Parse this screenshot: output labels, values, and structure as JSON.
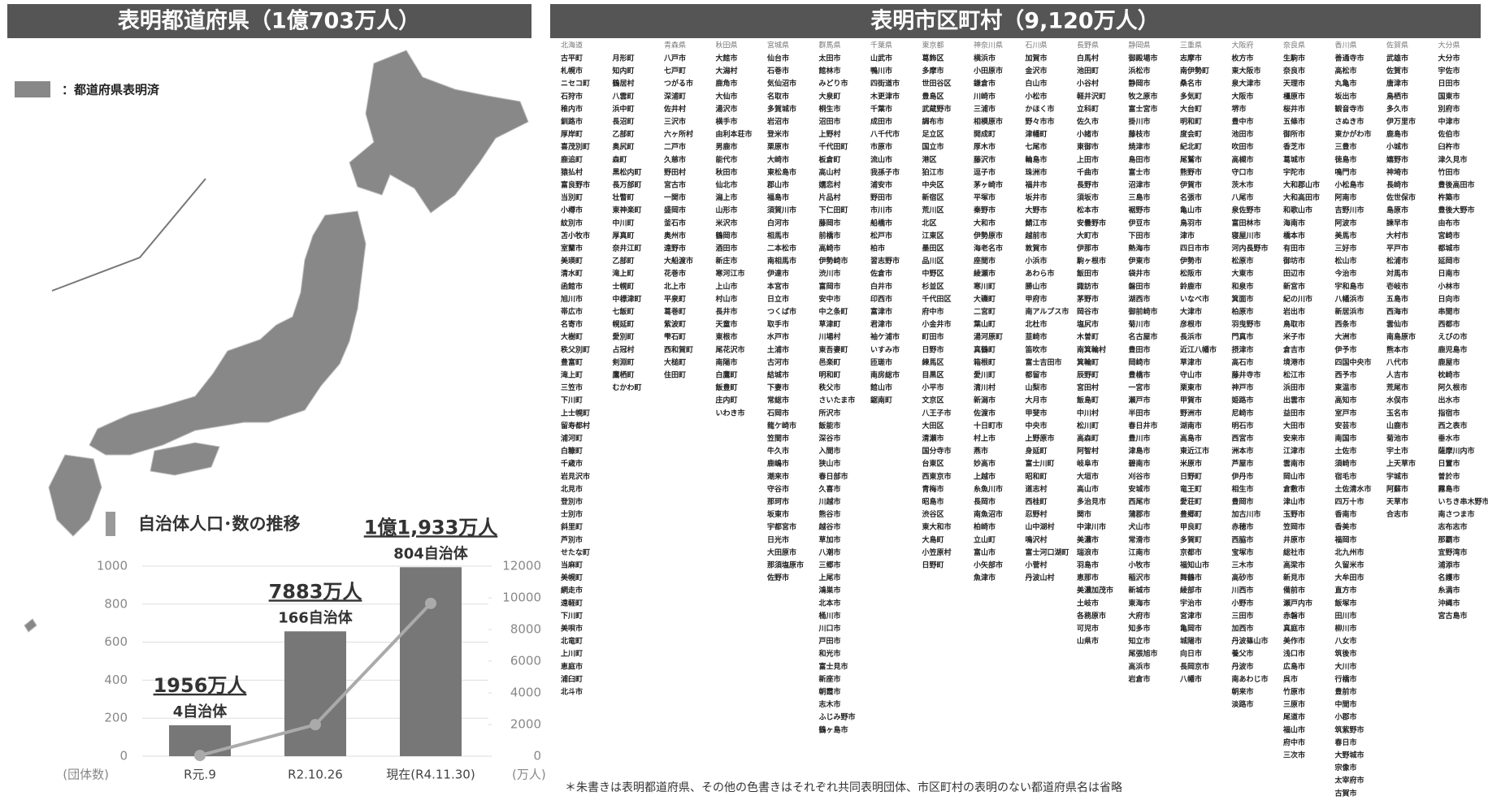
{
  "prefectures": {
    "title": "表明都道府県（1億703万人）",
    "legend": "：都道府県表明済"
  },
  "chart_data": {
    "type": "bar-line",
    "title": "自治体人口･数の推移",
    "categories": [
      "R元.9",
      "R2.10.26",
      "現在(R4.11.30)"
    ],
    "series": [
      {
        "type": "bar",
        "axis": "y2",
        "color": "#777777",
        "values": [
          1956,
          7883,
          11933
        ],
        "value_labels": [
          "1956万人",
          "7883万人",
          "1億1,933万人"
        ]
      },
      {
        "type": "line",
        "axis": "y",
        "color": "#aaaaaa",
        "values": [
          4,
          166,
          804
        ],
        "value_labels": [
          "4自治体",
          "166自治体",
          "804自治体"
        ]
      }
    ],
    "ylim": [
      0,
      1000
    ],
    "yticks": [
      0,
      200,
      400,
      600,
      800,
      1000
    ],
    "ylabel": "(団体数)",
    "y2lim": [
      0,
      12000
    ],
    "y2ticks": [
      0,
      2000,
      4000,
      6000,
      8000,
      10000,
      12000
    ],
    "y2label": "(万人)",
    "grid": true
  },
  "municipalities": {
    "title": "表明市区町村（9,120万人）",
    "columns": [
      {
        "header": "北海道",
        "names": [
          "古平町",
          "札幌市",
          "ニセコ町",
          "石狩市",
          "稚内市",
          "釧路市",
          "厚岸町",
          "喜茂別町",
          "鹿追町",
          "猿払村",
          "富良野市",
          "当別町",
          "小樽市",
          "紋別市",
          "苫小牧市",
          "室蘭市",
          "美瑛町",
          "清水町",
          "函館市",
          "旭川市",
          "帯広市",
          "名寄市",
          "大樹町",
          "秩父別町",
          "豊富町",
          "滝上町",
          "三笠市",
          "下川町",
          "上士幌町",
          "留寿都村",
          "浦河町",
          "白糠町",
          "千歳市",
          "岩見沢市",
          "北見市",
          "登別市",
          "士別市",
          "斜里町",
          "芦別市",
          "せたな町",
          "当麻町",
          "美幌町",
          "網走市",
          "遠軽町",
          "下川町",
          "美唄市",
          "北竜町",
          "上川町",
          "恵庭市",
          "浦臼町",
          "北斗市"
        ]
      },
      {
        "names": [
          "月形町",
          "知内町",
          "鶴居村",
          "八雲町",
          "浜中町",
          "長沼町",
          "乙部町",
          "奥尻町",
          "森町",
          "黒松内町",
          "長万部町",
          "壮瞥町",
          "東神楽町",
          "中川町",
          "厚真町",
          "奈井江町",
          "乙部町",
          "滝上町",
          "士幌町",
          "中標津町",
          "七飯町",
          "幌延町",
          "愛別町",
          "占冠村",
          "剣淵町",
          "鷹栖町",
          "むかわ町"
        ]
      },
      {
        "header": "青森県",
        "names": [
          "八戸市",
          "七戸町",
          "つがる市",
          "深浦町",
          "佐井村",
          "三沢市",
          "六ヶ所村",
          "二戸市",
          "久慈市",
          "野田村",
          "宮古市",
          "一関市",
          "盛岡市",
          "釜石市",
          "奥州市",
          "遠野市",
          "大船渡市",
          "花巻市",
          "北上市",
          "平泉町",
          "葛巻町",
          "紫波町",
          "雫石町",
          "西和賀町",
          "大槌町",
          "住田町"
        ]
      },
      {
        "header": "秋田県",
        "names": [
          "大館市",
          "大潟村",
          "鹿角市",
          "大仙市",
          "湯沢市",
          "横手市",
          "由利本荘市",
          "男鹿市",
          "能代市",
          "秋田市",
          "仙北市",
          "潟上市",
          "山形市",
          "米沢市",
          "鶴岡市",
          "酒田市",
          "新庄市",
          "寒河江市",
          "上山市",
          "村山市",
          "長井市",
          "天童市",
          "東根市",
          "尾花沢市",
          "南陽市",
          "白鷹町",
          "飯豊町",
          "庄内町",
          "いわき市"
        ]
      },
      {
        "header": "宮城県",
        "names": [
          "仙台市",
          "石巻市",
          "気仙沼市",
          "名取市",
          "多賀城市",
          "岩沼市",
          "登米市",
          "栗原市",
          "大崎市",
          "東松島市",
          "郡山市",
          "福島市",
          "須賀川市",
          "白河市",
          "相馬市",
          "二本松市",
          "南相馬市",
          "伊達市",
          "本宮市",
          "日立市",
          "つくば市",
          "取手市",
          "水戸市",
          "土浦市",
          "古河市",
          "結城市",
          "下妻市",
          "常総市",
          "石岡市",
          "龍ケ崎市",
          "笠間市",
          "牛久市",
          "鹿嶋市",
          "潮来市",
          "守谷市",
          "那珂市",
          "坂東市",
          "宇都宮市",
          "日光市",
          "大田原市",
          "那須塩原市",
          "佐野市"
        ]
      },
      {
        "header": "群馬県",
        "names": [
          "太田市",
          "館林市",
          "みどり市",
          "大泉町",
          "桐生市",
          "沼田市",
          "上野村",
          "千代田町",
          "板倉町",
          "高山村",
          "嬬恋村",
          "片品村",
          "下仁田町",
          "藤岡市",
          "前橋市",
          "高崎市",
          "伊勢崎市",
          "渋川市",
          "富岡市",
          "安中市",
          "中之条町",
          "草津町",
          "川場村",
          "東吾妻町",
          "邑楽町",
          "明和町",
          "秩父市",
          "さいたま市",
          "所沢市",
          "飯能市",
          "深谷市",
          "入間市",
          "狭山市",
          "春日部市",
          "久喜市",
          "川越市",
          "熊谷市",
          "越谷市",
          "草加市",
          "八潮市",
          "三郷市",
          "上尾市",
          "鴻巣市",
          "北本市",
          "桶川市",
          "川口市",
          "戸田市",
          "和光市",
          "富士見市",
          "新座市",
          "朝霞市",
          "志木市",
          "ふじみ野市",
          "鶴ヶ島市"
        ]
      },
      {
        "header": "千葉県",
        "names": [
          "山武市",
          "鴨川市",
          "四街道市",
          "木更津市",
          "千葉市",
          "成田市",
          "八千代市",
          "市原市",
          "流山市",
          "我孫子市",
          "浦安市",
          "野田市",
          "市川市",
          "船橋市",
          "松戸市",
          "柏市",
          "習志野市",
          "佐倉市",
          "白井市",
          "印西市",
          "富津市",
          "君津市",
          "袖ケ浦市",
          "いすみ市",
          "匝瑳市",
          "南房総市",
          "館山市",
          "鋸南町"
        ]
      },
      {
        "header": "東京都",
        "names": [
          "葛飾区",
          "多摩市",
          "世田谷区",
          "豊島区",
          "武蔵野市",
          "調布市",
          "足立区",
          "国立市",
          "港区",
          "狛江市",
          "中央区",
          "新宿区",
          "荒川区",
          "北区",
          "江東区",
          "墨田区",
          "品川区",
          "中野区",
          "杉並区",
          "千代田区",
          "府中市",
          "小金井市",
          "町田市",
          "日野市",
          "練馬区",
          "目黒区",
          "小平市",
          "文京区",
          "八王子市",
          "大田区",
          "清瀬市",
          "国分寺市",
          "台東区",
          "西東京市",
          "青梅市",
          "昭島市",
          "渋谷区",
          "東大和市",
          "大島町",
          "小笠原村",
          "日野町"
        ]
      },
      {
        "header": "神奈川県",
        "names": [
          "横浜市",
          "小田原市",
          "鎌倉市",
          "川崎市",
          "三浦市",
          "相模原市",
          "開成町",
          "厚木市",
          "藤沢市",
          "逗子市",
          "茅ヶ崎市",
          "平塚市",
          "秦野市",
          "大和市",
          "伊勢原市",
          "海老名市",
          "座間市",
          "綾瀬市",
          "寒川町",
          "大磯町",
          "二宮町",
          "葉山町",
          "湯河原町",
          "真鶴町",
          "箱根町",
          "愛川町",
          "清川村",
          "新潟市",
          "佐渡市",
          "十日町市",
          "村上市",
          "燕市",
          "妙高市",
          "上越市",
          "糸魚川市",
          "長岡市",
          "南魚沼市",
          "柏崎市",
          "立山町",
          "富山市",
          "小矢部市",
          "魚津市"
        ]
      },
      {
        "header": "石川県",
        "names": [
          "加賀市",
          "金沢市",
          "白山市",
          "小松市",
          "かほく市",
          "野々市市",
          "津幡町",
          "七尾市",
          "輪島市",
          "珠洲市",
          "福井市",
          "坂井市",
          "大野市",
          "鯖江市",
          "越前市",
          "敦賀市",
          "小浜市",
          "あわら市",
          "勝山市",
          "甲府市",
          "南アルプス市",
          "北杜市",
          "韮崎市",
          "笛吹市",
          "富士吉田市",
          "都留市",
          "山梨市",
          "大月市",
          "甲斐市",
          "中央市",
          "上野原市",
          "身延町",
          "富士川町",
          "昭和町",
          "道志村",
          "西桂町",
          "忍野村",
          "山中湖村",
          "鳴沢村",
          "富士河口湖町",
          "小菅村",
          "丹波山村"
        ]
      },
      {
        "header": "長野県",
        "names": [
          "白馬村",
          "池田町",
          "小谷村",
          "軽井沢町",
          "立科町",
          "佐久市",
          "小諸市",
          "東御市",
          "上田市",
          "千曲市",
          "長野市",
          "須坂市",
          "松本市",
          "安曇野市",
          "大町市",
          "伊那市",
          "駒ヶ根市",
          "飯田市",
          "諏訪市",
          "茅野市",
          "岡谷市",
          "塩尻市",
          "木曽町",
          "南箕輪村",
          "箕輪町",
          "辰野町",
          "宮田村",
          "飯島町",
          "中川村",
          "松川町",
          "高森町",
          "阿智村",
          "岐阜市",
          "大垣市",
          "高山市",
          "多治見市",
          "関市",
          "中津川市",
          "美濃市",
          "瑞浪市",
          "羽島市",
          "恵那市",
          "美濃加茂市",
          "土岐市",
          "各務原市",
          "可児市",
          "山県市"
        ]
      },
      {
        "header": "静岡県",
        "names": [
          "御殿場市",
          "浜松市",
          "静岡市",
          "牧之原市",
          "富士宮市",
          "掛川市",
          "藤枝市",
          "焼津市",
          "島田市",
          "富士市",
          "沼津市",
          "三島市",
          "裾野市",
          "伊豆市",
          "下田市",
          "熱海市",
          "伊東市",
          "袋井市",
          "磐田市",
          "湖西市",
          "御前崎市",
          "菊川市",
          "名古屋市",
          "豊田市",
          "岡崎市",
          "豊橋市",
          "一宮市",
          "瀬戸市",
          "半田市",
          "春日井市",
          "豊川市",
          "津島市",
          "碧南市",
          "刈谷市",
          "安城市",
          "西尾市",
          "蒲郡市",
          "犬山市",
          "常滑市",
          "江南市",
          "小牧市",
          "稲沢市",
          "新城市",
          "東海市",
          "大府市",
          "知多市",
          "知立市",
          "尾張旭市",
          "高浜市",
          "岩倉市"
        ]
      },
      {
        "header": "三重県",
        "names": [
          "志摩市",
          "南伊勢町",
          "桑名市",
          "多気町",
          "大台町",
          "明和町",
          "度会町",
          "紀北町",
          "尾鷲市",
          "熊野市",
          "伊賀市",
          "名張市",
          "亀山市",
          "鳥羽市",
          "津市",
          "四日市市",
          "伊勢市",
          "松阪市",
          "鈴鹿市",
          "いなべ市",
          "大津市",
          "彦根市",
          "長浜市",
          "近江八幡市",
          "草津市",
          "守山市",
          "栗東市",
          "甲賀市",
          "野洲市",
          "湖南市",
          "高島市",
          "東近江市",
          "米原市",
          "日野町",
          "竜王町",
          "愛荘町",
          "豊郷町",
          "甲良町",
          "多賀町",
          "京都市",
          "福知山市",
          "舞鶴市",
          "綾部市",
          "宇治市",
          "宮津市",
          "亀岡市",
          "城陽市",
          "向日市",
          "長岡京市",
          "八幡市"
        ]
      },
      {
        "header": "大阪府",
        "names": [
          "枚方市",
          "東大阪市",
          "泉大津市",
          "大阪市",
          "堺市",
          "豊中市",
          "池田市",
          "吹田市",
          "高槻市",
          "守口市",
          "茨木市",
          "八尾市",
          "泉佐野市",
          "富田林市",
          "寝屋川市",
          "河内長野市",
          "松原市",
          "大東市",
          "和泉市",
          "箕面市",
          "柏原市",
          "羽曳野市",
          "門真市",
          "摂津市",
          "高石市",
          "藤井寺市",
          "神戸市",
          "姫路市",
          "尼崎市",
          "明石市",
          "西宮市",
          "洲本市",
          "芦屋市",
          "伊丹市",
          "相生市",
          "豊岡市",
          "加古川市",
          "赤穂市",
          "西脇市",
          "宝塚市",
          "三木市",
          "高砂市",
          "川西市",
          "小野市",
          "三田市",
          "加西市",
          "丹波篠山市",
          "養父市",
          "丹波市",
          "南あわじ市",
          "朝来市",
          "淡路市"
        ]
      },
      {
        "header": "奈良県",
        "names": [
          "生駒市",
          "奈良市",
          "天理市",
          "橿原市",
          "桜井市",
          "五條市",
          "御所市",
          "香芝市",
          "葛城市",
          "宇陀市",
          "大和郡山市",
          "大和高田市",
          "和歌山市",
          "海南市",
          "橋本市",
          "有田市",
          "御坊市",
          "田辺市",
          "新宮市",
          "紀の川市",
          "岩出市",
          "鳥取市",
          "米子市",
          "倉吉市",
          "境港市",
          "松江市",
          "浜田市",
          "出雲市",
          "益田市",
          "大田市",
          "安来市",
          "江津市",
          "雲南市",
          "岡山市",
          "倉敷市",
          "津山市",
          "玉野市",
          "笠岡市",
          "井原市",
          "総社市",
          "高梁市",
          "新見市",
          "備前市",
          "瀬戸内市",
          "赤磐市",
          "真庭市",
          "美作市",
          "浅口市",
          "広島市",
          "呉市",
          "竹原市",
          "三原市",
          "尾道市",
          "福山市",
          "府中市",
          "三次市"
        ]
      },
      {
        "header": "香川県",
        "names": [
          "善通寺市",
          "高松市",
          "丸亀市",
          "坂出市",
          "観音寺市",
          "さぬき市",
          "東かがわ市",
          "三豊市",
          "徳島市",
          "鳴門市",
          "小松島市",
          "阿南市",
          "吉野川市",
          "阿波市",
          "美馬市",
          "三好市",
          "松山市",
          "今治市",
          "宇和島市",
          "八幡浜市",
          "新居浜市",
          "西条市",
          "大洲市",
          "伊予市",
          "四国中央市",
          "西予市",
          "東温市",
          "高知市",
          "室戸市",
          "安芸市",
          "南国市",
          "土佐市",
          "須崎市",
          "宿毛市",
          "土佐清水市",
          "四万十市",
          "香南市",
          "香美市",
          "福岡市",
          "北九州市",
          "久留米市",
          "大牟田市",
          "直方市",
          "飯塚市",
          "田川市",
          "柳川市",
          "八女市",
          "筑後市",
          "大川市",
          "行橋市",
          "豊前市",
          "中間市",
          "小郡市",
          "筑紫野市",
          "春日市",
          "大野城市",
          "宗像市",
          "太宰府市",
          "古賀市"
        ]
      },
      {
        "header": "佐賀県",
        "names": [
          "武雄市",
          "佐賀市",
          "唐津市",
          "鳥栖市",
          "多久市",
          "伊万里市",
          "鹿島市",
          "小城市",
          "嬉野市",
          "神埼市",
          "長崎市",
          "佐世保市",
          "島原市",
          "諫早市",
          "大村市",
          "平戸市",
          "松浦市",
          "対馬市",
          "壱岐市",
          "五島市",
          "西海市",
          "雲仙市",
          "南島原市",
          "熊本市",
          "八代市",
          "人吉市",
          "荒尾市",
          "水俣市",
          "玉名市",
          "山鹿市",
          "菊池市",
          "宇土市",
          "上天草市",
          "宇城市",
          "阿蘇市",
          "天草市",
          "合志市"
        ]
      },
      {
        "header": "大分県",
        "names": [
          "大分市",
          "宇佐市",
          "日田市",
          "国東市",
          "別府市",
          "中津市",
          "佐伯市",
          "臼杵市",
          "津久見市",
          "竹田市",
          "豊後高田市",
          "杵築市",
          "豊後大野市",
          "由布市",
          "宮崎市",
          "都城市",
          "延岡市",
          "日南市",
          "小林市",
          "日向市",
          "串間市",
          "西都市",
          "えびの市",
          "鹿児島市",
          "鹿屋市",
          "枕崎市",
          "阿久根市",
          "出水市",
          "指宿市",
          "西之表市",
          "垂水市",
          "薩摩川内市",
          "日置市",
          "曽於市",
          "霧島市",
          "いちき串木野市",
          "南さつま市",
          "志布志市",
          "那覇市",
          "宜野湾市",
          "浦添市",
          "名護市",
          "糸満市",
          "沖縄市",
          "宮古島市"
        ]
      }
    ],
    "footnote": "＊朱書きは表明都道府県、その他の色書きはそれぞれ共同表明団体、市区町村の表明のない都道府県名は省略"
  }
}
